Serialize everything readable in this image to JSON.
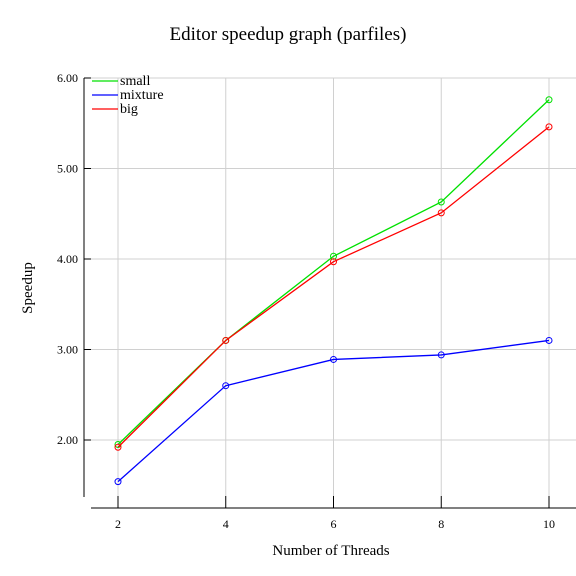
{
  "chart_data": {
    "type": "line",
    "title": "Editor speedup graph (parfiles)",
    "xlabel": "Number of Threads",
    "ylabel": "Speedup",
    "x": [
      2,
      4,
      6,
      8,
      10
    ],
    "xlim": [
      1.5,
      10.5
    ],
    "ylim": [
      1.35,
      6.0
    ],
    "x_ticks": [
      "2",
      "4",
      "6",
      "8",
      "10"
    ],
    "y_ticks": [
      {
        "value": 2.0,
        "label": "2.00"
      },
      {
        "value": 3.0,
        "label": "3.00"
      },
      {
        "value": 4.0,
        "label": "4.00"
      },
      {
        "value": 5.0,
        "label": "5.00"
      },
      {
        "value": 6.0,
        "label": "6.00"
      }
    ],
    "grid": true,
    "legend_position": "top-left",
    "series": [
      {
        "name": "small",
        "color": "#00e000",
        "values": [
          1.95,
          3.1,
          4.03,
          4.63,
          5.76
        ]
      },
      {
        "name": "mixture",
        "color": "#0000ff",
        "values": [
          1.54,
          2.6,
          2.89,
          2.94,
          3.1
        ]
      },
      {
        "name": "big",
        "color": "#ff0000",
        "values": [
          1.92,
          3.1,
          3.97,
          4.51,
          5.46
        ]
      }
    ]
  }
}
